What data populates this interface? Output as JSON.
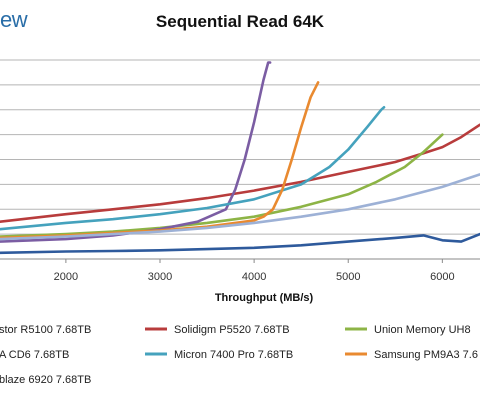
{
  "brand": "ew",
  "chart_data": {
    "type": "line",
    "title": "Sequential Read 64K",
    "xlabel": "Throughput (MB/s)",
    "ylabel": "",
    "xlim": [
      1300,
      6400
    ],
    "ylim": [
      0,
      8
    ],
    "x_ticks": [
      2000,
      3000,
      4000,
      5000,
      6000
    ],
    "grid": true,
    "legend_position": "bottom",
    "series": [
      {
        "name": "stor R5100 7.68TB",
        "color": "#2e5a9c",
        "x": [
          1300,
          2000,
          2500,
          3000,
          3500,
          4000,
          4500,
          5000,
          5500,
          5800,
          6000,
          6200,
          6400
        ],
        "y": [
          0.25,
          0.3,
          0.32,
          0.35,
          0.4,
          0.45,
          0.55,
          0.7,
          0.85,
          0.95,
          0.75,
          0.7,
          1.0
        ]
      },
      {
        "name": "Solidigm P5520 7.68TB",
        "color": "#b83c3c",
        "x": [
          1300,
          2000,
          2500,
          3000,
          3500,
          4000,
          4500,
          5000,
          5500,
          5800,
          6000,
          6200,
          6400
        ],
        "y": [
          1.5,
          1.8,
          2.0,
          2.2,
          2.45,
          2.75,
          3.1,
          3.5,
          3.9,
          4.25,
          4.5,
          4.9,
          5.4
        ]
      },
      {
        "name": "Union Memory UH8",
        "color": "#8db446",
        "x": [
          1300,
          2000,
          2500,
          3000,
          3500,
          4000,
          4500,
          5000,
          5300,
          5600,
          5800,
          6000
        ],
        "y": [
          0.9,
          1.0,
          1.1,
          1.25,
          1.45,
          1.7,
          2.1,
          2.6,
          3.1,
          3.7,
          4.3,
          5.0
        ]
      },
      {
        "name": "A CD6 7.68TB",
        "color": "#7b5da3",
        "x": [
          1300,
          2000,
          2500,
          3000,
          3400,
          3700,
          3800,
          3900,
          4000,
          4100,
          4150,
          4170
        ],
        "y": [
          0.7,
          0.8,
          0.95,
          1.2,
          1.5,
          2.0,
          2.8,
          4.0,
          5.5,
          7.2,
          7.9,
          7.9
        ]
      },
      {
        "name": "Micron 7400 Pro 7.68TB",
        "color": "#45a2bd",
        "x": [
          1300,
          2000,
          2500,
          3000,
          3500,
          4000,
          4500,
          4800,
          5000,
          5200,
          5350,
          5380
        ],
        "y": [
          1.2,
          1.45,
          1.6,
          1.8,
          2.05,
          2.4,
          3.0,
          3.7,
          4.4,
          5.3,
          6.0,
          6.1
        ]
      },
      {
        "name": "Samsung PM9A3 7.6",
        "color": "#e98a30",
        "x": [
          1300,
          2000,
          2500,
          3000,
          3500,
          4000,
          4100,
          4200,
          4300,
          4400,
          4500,
          4600,
          4680
        ],
        "y": [
          0.85,
          0.95,
          1.05,
          1.15,
          1.3,
          1.55,
          1.7,
          2.0,
          2.8,
          4.0,
          5.3,
          6.5,
          7.1
        ]
      },
      {
        "name": "blaze 6920 7.68TB",
        "color": "#9db1d6",
        "x": [
          1300,
          2000,
          2500,
          3000,
          3500,
          4000,
          4500,
          5000,
          5500,
          6000,
          6400
        ],
        "y": [
          0.8,
          0.9,
          1.0,
          1.1,
          1.25,
          1.45,
          1.7,
          2.0,
          2.4,
          2.9,
          3.4
        ]
      }
    ]
  }
}
